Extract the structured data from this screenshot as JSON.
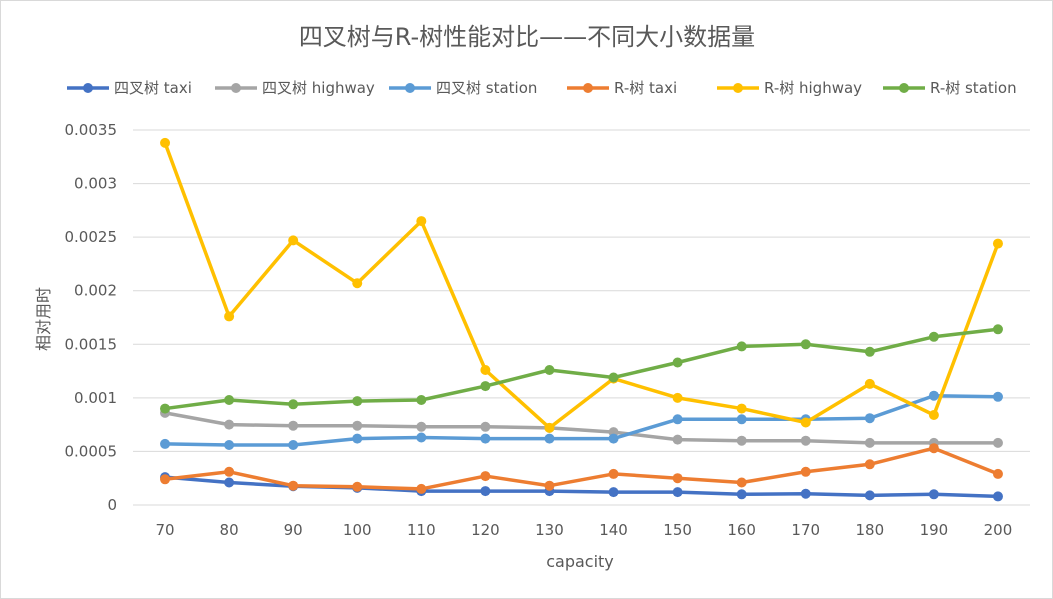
{
  "chart_data": {
    "type": "line",
    "title": "四叉树与R-树性能对比——不同大小数据量",
    "xlabel": "capacity",
    "ylabel": "相对用时",
    "ylim": [
      0,
      0.0035
    ],
    "yticks": [
      "0",
      "0.0005",
      "0.001",
      "0.0015",
      "0.002",
      "0.0025",
      "0.003",
      "0.0035"
    ],
    "ytick_values": [
      0,
      0.0005,
      0.001,
      0.0015,
      0.002,
      0.0025,
      0.003,
      0.0035
    ],
    "grid": true,
    "legend_position": "top",
    "x": [
      70,
      80,
      90,
      100,
      110,
      120,
      130,
      140,
      150,
      160,
      170,
      180,
      190,
      200
    ],
    "series": [
      {
        "name": "四叉树 taxi",
        "color": "#4472C4",
        "values": [
          0.00026,
          0.00021,
          0.000175,
          0.00016,
          0.00013,
          0.00013,
          0.00013,
          0.00012,
          0.00012,
          0.0001,
          0.000105,
          9e-05,
          0.0001,
          8e-05
        ]
      },
      {
        "name": "四叉树 highway",
        "color": "#A5A5A5",
        "values": [
          0.00086,
          0.00075,
          0.00074,
          0.00074,
          0.00073,
          0.00073,
          0.00072,
          0.00068,
          0.00061,
          0.0006,
          0.0006,
          0.00058,
          0.00058,
          0.00058
        ]
      },
      {
        "name": "四叉树 station",
        "color": "#5B9BD5",
        "values": [
          0.00057,
          0.00056,
          0.00056,
          0.00062,
          0.00063,
          0.00062,
          0.00062,
          0.00062,
          0.0008,
          0.0008,
          0.0008,
          0.00081,
          0.00102,
          0.00101
        ]
      },
      {
        "name": "R-树 taxi",
        "color": "#ED7D31",
        "values": [
          0.00024,
          0.00031,
          0.00018,
          0.00017,
          0.00015,
          0.00027,
          0.00018,
          0.00029,
          0.00025,
          0.00021,
          0.00031,
          0.00038,
          0.00053,
          0.00029
        ]
      },
      {
        "name": "R-树 highway",
        "color": "#FFC000",
        "values": [
          0.00338,
          0.00176,
          0.00247,
          0.00207,
          0.00265,
          0.00126,
          0.00072,
          0.00118,
          0.001,
          0.0009,
          0.00077,
          0.00113,
          0.00084,
          0.00244
        ]
      },
      {
        "name": "R-树 station",
        "color": "#70AD47",
        "values": [
          0.0009,
          0.00098,
          0.00094,
          0.00097,
          0.00098,
          0.00111,
          0.00126,
          0.00119,
          0.00133,
          0.00148,
          0.0015,
          0.00143,
          0.00157,
          0.00164
        ]
      }
    ]
  }
}
